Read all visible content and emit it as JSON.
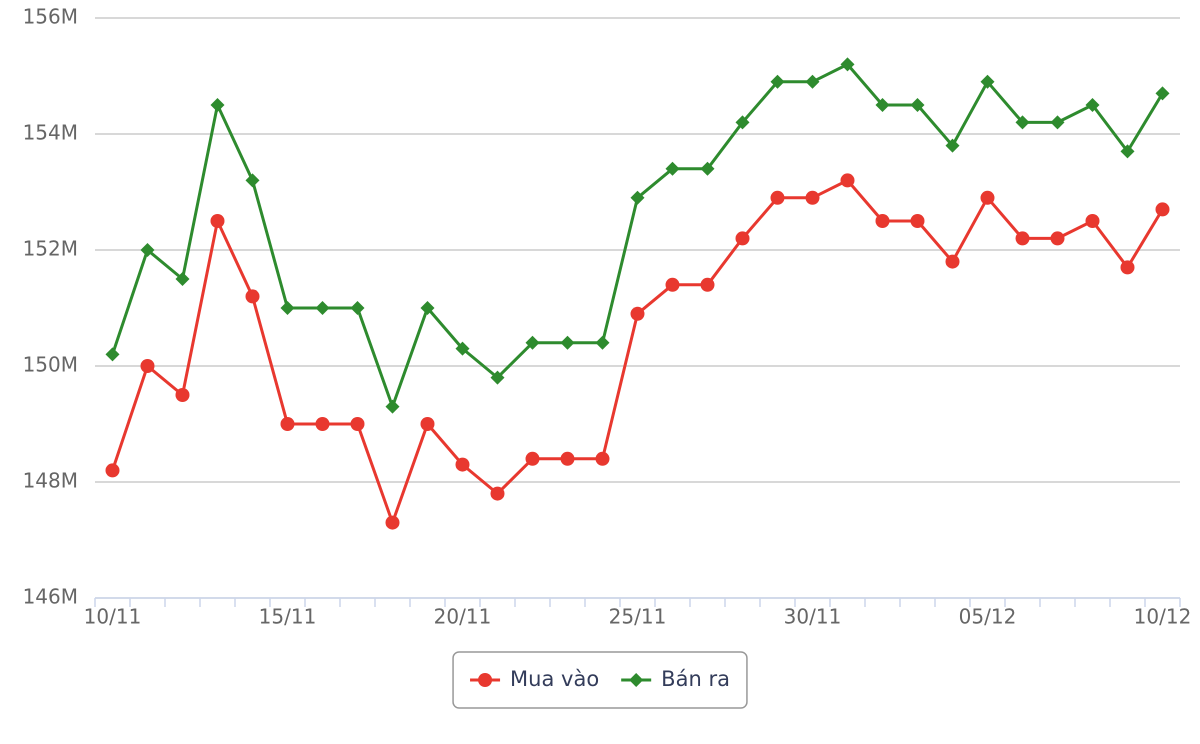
{
  "chart_data": {
    "type": "line",
    "categories": [
      "10/11",
      null,
      null,
      null,
      null,
      "15/11",
      null,
      null,
      null,
      null,
      "20/11",
      null,
      null,
      null,
      null,
      "25/11",
      null,
      null,
      null,
      null,
      "30/11",
      null,
      null,
      null,
      null,
      "05/12",
      null,
      null,
      null,
      null,
      "10/12"
    ],
    "series": [
      {
        "name": "Mua vào",
        "color": "#e8382f",
        "marker": "circle",
        "values": [
          148.2,
          150.0,
          149.5,
          152.5,
          151.2,
          149.0,
          149.0,
          149.0,
          147.3,
          149.0,
          148.3,
          147.8,
          148.4,
          148.4,
          148.4,
          150.9,
          151.4,
          151.4,
          152.2,
          152.9,
          152.9,
          153.2,
          152.5,
          152.5,
          151.8,
          152.9,
          152.2,
          152.2,
          152.5,
          151.7,
          152.7
        ]
      },
      {
        "name": "Bán ra",
        "color": "#2e8b2e",
        "marker": "diamond",
        "values": [
          150.2,
          152.0,
          151.5,
          154.5,
          153.2,
          151.0,
          151.0,
          151.0,
          149.3,
          151.0,
          150.3,
          149.8,
          150.4,
          150.4,
          150.4,
          152.9,
          153.4,
          153.4,
          154.2,
          154.9,
          154.9,
          155.2,
          154.5,
          154.5,
          153.8,
          154.9,
          154.2,
          154.2,
          154.5,
          153.7,
          154.7
        ]
      }
    ],
    "ylim": [
      146,
      156
    ],
    "yticks": [
      {
        "value": 146,
        "label": "146M"
      },
      {
        "value": 148,
        "label": "148M"
      },
      {
        "value": 150,
        "label": "150M"
      },
      {
        "value": 152,
        "label": "152M"
      },
      {
        "value": 154,
        "label": "154M"
      },
      {
        "value": 156,
        "label": "156M"
      }
    ],
    "grid": true,
    "legend": "bottom"
  }
}
